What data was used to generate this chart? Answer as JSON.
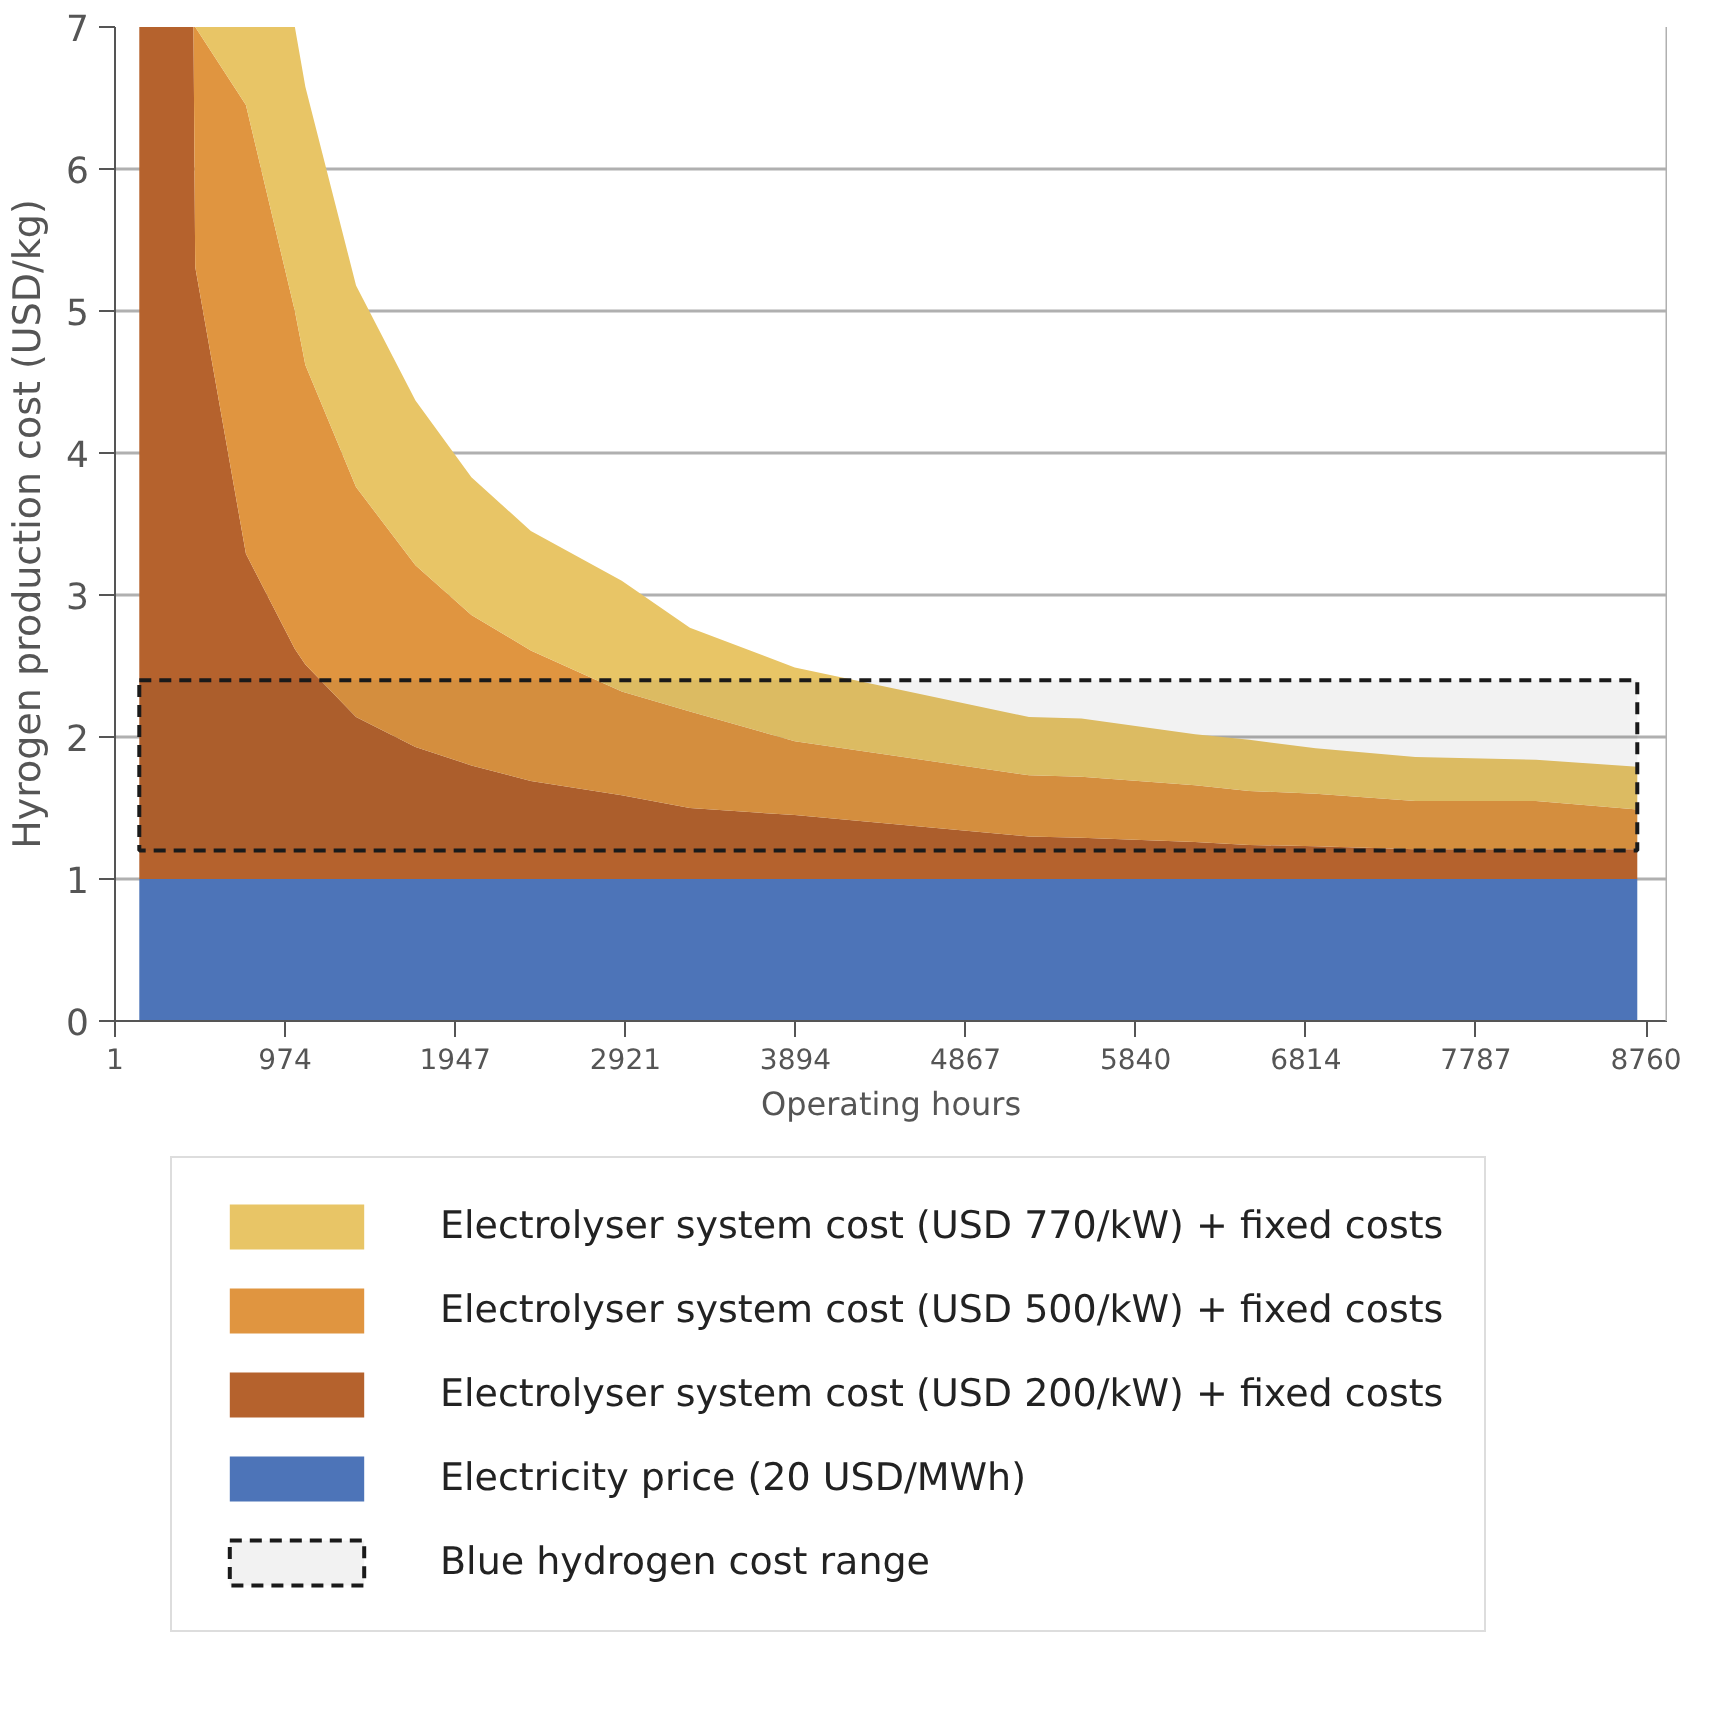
{
  "chart_data": {
    "type": "area",
    "stacked": true,
    "xlabel": "Operating hours",
    "ylabel": "Hyrogen production cost (USD/kg)",
    "x": [
      140,
      450,
      460,
      750,
      1030,
      1090,
      1380,
      1720,
      2040,
      2380,
      2900,
      3290,
      3890,
      5230,
      5530,
      6180,
      6490,
      6870,
      7440,
      8130,
      8710
    ],
    "series": [
      {
        "name": "Electricity price (20 USD/MWh)",
        "color": "#4d74b8",
        "values": [
          1,
          1,
          1,
          1,
          1,
          1,
          1,
          1,
          1,
          1,
          1,
          1,
          1,
          1,
          1,
          1,
          1,
          1,
          1,
          1,
          1
        ]
      },
      {
        "name": "Electrolyser system cost (USD 200/kW) + fixed costs",
        "color": "#b5622d",
        "values": [
          6,
          6,
          4.31,
          2.29,
          1.62,
          1.51,
          1.14,
          0.93,
          0.8,
          0.69,
          0.59,
          0.5,
          0.45,
          0.3,
          0.29,
          0.26,
          0.24,
          0.23,
          0.21,
          0.21,
          0.21
        ]
      },
      {
        "name": "Electrolyser system cost (USD 500/kW) + fixed costs",
        "color": "#e09540",
        "values": [
          0,
          0,
          1.69,
          3.16,
          2.38,
          2.11,
          1.62,
          1.28,
          1.06,
          0.92,
          0.73,
          0.68,
          0.52,
          0.43,
          0.43,
          0.4,
          0.38,
          0.37,
          0.34,
          0.34,
          0.28
        ]
      },
      {
        "name": "Electrolyser system cost (USD 770/kW) + fixed costs",
        "color": "#e8c566",
        "values": [
          0,
          0,
          0,
          0.55,
          2.0,
          1.96,
          1.42,
          1.16,
          0.97,
          0.84,
          0.78,
          0.59,
          0.52,
          0.41,
          0.41,
          0.36,
          0.36,
          0.32,
          0.31,
          0.29,
          0.3
        ]
      }
    ],
    "bands": [
      {
        "axis": "y",
        "from": 1.2,
        "to": 2.4,
        "label": "Blue hydrogen cost range",
        "color": "#1a1a1a"
      }
    ],
    "xlim": [
      1,
      8880
    ],
    "ylim": [
      0,
      7
    ],
    "xticks": [
      1,
      974,
      1947,
      2921,
      3894,
      4867,
      5840,
      6814,
      7787,
      8760
    ],
    "yticks": [
      0,
      1,
      2,
      3,
      4,
      5,
      6,
      7
    ],
    "grid": "y",
    "legend": "bottom"
  }
}
